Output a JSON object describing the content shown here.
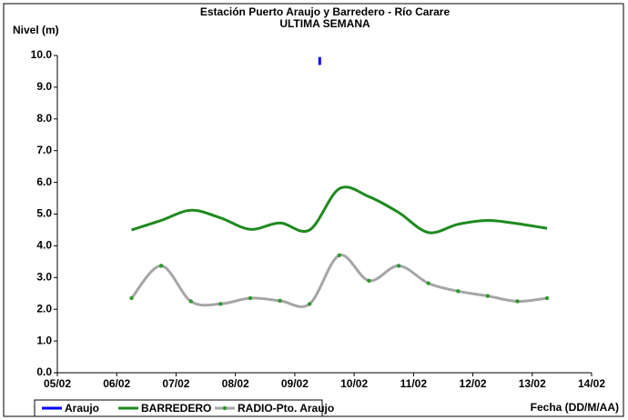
{
  "chart_data": {
    "type": "line",
    "title": "Estación Puerto Araujo y Barredero - Río Carare",
    "subtitle": "ULTIMA SEMANA",
    "y_label": "Nivel (m)",
    "x_label": "Fecha (DD/M/AA)",
    "xlim": [
      5,
      14
    ],
    "xticks": [
      {
        "value": 5,
        "label": "05/02"
      },
      {
        "value": 6,
        "label": "06/02"
      },
      {
        "value": 7,
        "label": "07/02"
      },
      {
        "value": 8,
        "label": "08/02"
      },
      {
        "value": 9,
        "label": "09/02"
      },
      {
        "value": 10,
        "label": "10/02"
      },
      {
        "value": 11,
        "label": "11/02"
      },
      {
        "value": 12,
        "label": "12/02"
      },
      {
        "value": 13,
        "label": "13/02"
      },
      {
        "value": 14,
        "label": "14/02"
      }
    ],
    "ylim": [
      0,
      10
    ],
    "yticks": [
      {
        "value": 0,
        "label": "0.0"
      },
      {
        "value": 1,
        "label": "1.0"
      },
      {
        "value": 2,
        "label": "2.0"
      },
      {
        "value": 3,
        "label": "3.0"
      },
      {
        "value": 4,
        "label": "4.0"
      },
      {
        "value": 5,
        "label": "5.0"
      },
      {
        "value": 6,
        "label": "6.0"
      },
      {
        "value": 7,
        "label": "7.0"
      },
      {
        "value": 8,
        "label": "8.0"
      },
      {
        "value": 9,
        "label": "9.0"
      },
      {
        "value": 10,
        "label": "10.0"
      }
    ],
    "grid": false,
    "legend": "bottom-left",
    "series": [
      {
        "name": "Araujo",
        "color": "#0000ff",
        "markers": false,
        "x": [
          9.42,
          9.42
        ],
        "values": [
          9.95,
          9.7
        ]
      },
      {
        "name": "BARREDERO",
        "color": "#1e8a1e",
        "markers": false,
        "x": [
          6.25,
          6.75,
          7.25,
          7.75,
          8.25,
          8.75,
          9.25,
          9.75,
          10.25,
          10.75,
          11.25,
          11.75,
          12.25,
          12.75,
          13.25
        ],
        "values": [
          4.5,
          4.8,
          5.12,
          4.88,
          4.52,
          4.72,
          4.5,
          5.8,
          5.55,
          5.05,
          4.42,
          4.68,
          4.8,
          4.7,
          4.55
        ]
      },
      {
        "name": "RADIO-Pto. Araujo",
        "color": "#a6a6a6",
        "marker_color": "#2e9a2e",
        "markers": true,
        "x": [
          6.25,
          6.75,
          7.25,
          7.75,
          8.25,
          8.75,
          9.25,
          9.75,
          10.25,
          10.75,
          11.25,
          11.75,
          12.25,
          12.75,
          13.25
        ],
        "values": [
          2.35,
          3.37,
          2.25,
          2.17,
          2.35,
          2.27,
          2.17,
          3.7,
          2.9,
          3.37,
          2.82,
          2.57,
          2.42,
          2.25,
          2.35
        ]
      }
    ]
  }
}
